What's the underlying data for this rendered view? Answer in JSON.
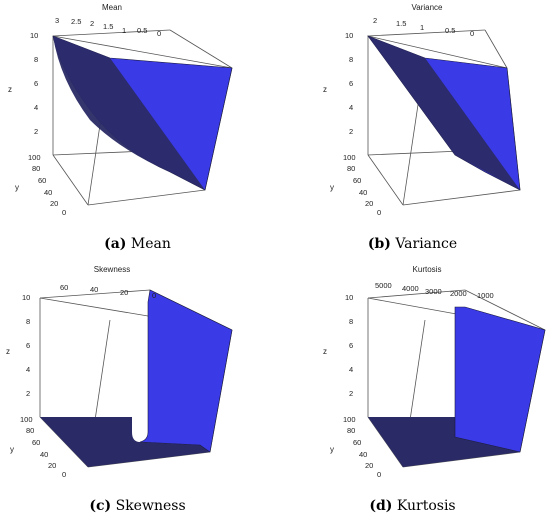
{
  "panels": [
    {
      "title": "Mean",
      "caption_label": "(a)",
      "caption_text": "Mean",
      "z_axis_label": "z",
      "y_axis_label": "y",
      "top_ticks": [
        "3",
        "2.5",
        "2",
        "1.5",
        "1",
        "0.5",
        "0"
      ],
      "z_ticks": [
        "10",
        "8",
        "6",
        "4",
        "2"
      ],
      "y_ticks": [
        "100",
        "80",
        "60",
        "40",
        "20",
        "0"
      ]
    },
    {
      "title": "Variance",
      "caption_label": "(b)",
      "caption_text": "Variance",
      "z_axis_label": "z",
      "y_axis_label": "y",
      "top_ticks": [
        "2",
        "1.5",
        "1",
        "0.5",
        "0"
      ],
      "z_ticks": [
        "10",
        "8",
        "6",
        "4",
        "2"
      ],
      "y_ticks": [
        "100",
        "80",
        "60",
        "40",
        "20",
        "0"
      ]
    },
    {
      "title": "Skewness",
      "caption_label": "(c)",
      "caption_text": "Skewness",
      "z_axis_label": "z",
      "y_axis_label": "y",
      "top_ticks": [
        "60",
        "40",
        "20",
        "0"
      ],
      "z_ticks": [
        "10",
        "8",
        "6",
        "4",
        "2"
      ],
      "y_ticks": [
        "100",
        "80",
        "60",
        "40",
        "20",
        "0"
      ]
    },
    {
      "title": "Kurtosis",
      "caption_label": "(d)",
      "caption_text": "Kurtosis",
      "z_axis_label": "z",
      "y_axis_label": "y",
      "top_ticks": [
        "5000",
        "4000",
        "3000",
        "2000",
        "1000"
      ],
      "z_ticks": [
        "10",
        "8",
        "6",
        "4",
        "2"
      ],
      "y_ticks": [
        "100",
        "80",
        "60",
        "40",
        "20",
        "0"
      ]
    }
  ],
  "colors": {
    "surface_light": "#3a3ae6",
    "surface_dark": "#2a2a66",
    "surface_edge": "#1a1a40"
  }
}
